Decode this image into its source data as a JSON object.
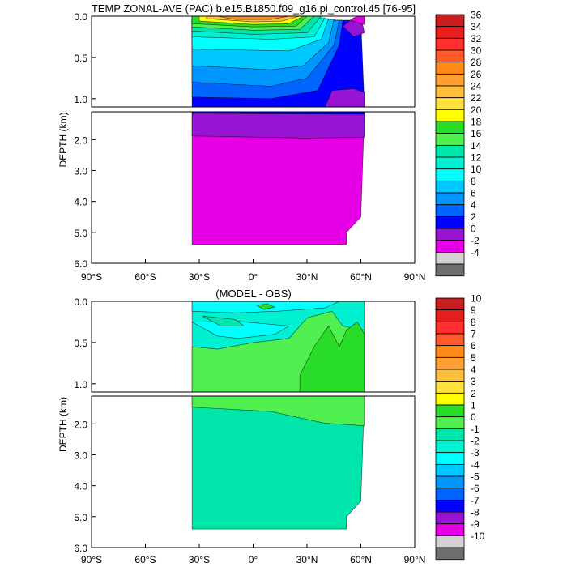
{
  "chart_data": [
    {
      "type": "heatmap",
      "title": "TEMP ZONAL-AVE (PAC) b.e15.B1850.f09_g16.pi_control.45 [76-95]",
      "ylabel": "DEPTH (km)",
      "x_ticks": [
        "90°S",
        "60°S",
        "30°S",
        "0°",
        "30°N",
        "60°N",
        "90°N"
      ],
      "upper_y_ticks": [
        "0.0",
        "0.5",
        "1.0"
      ],
      "lower_y_ticks": [
        "2.0",
        "3.0",
        "4.0",
        "5.0",
        "6.0"
      ],
      "xlim": [
        -90,
        90
      ],
      "upper_ylim_km": [
        0,
        1.1
      ],
      "lower_ylim_km": [
        1.1,
        6.0
      ],
      "colorbar": {
        "labels": [
          "36",
          "34",
          "32",
          "30",
          "28",
          "26",
          "24",
          "22",
          "20",
          "18",
          "16",
          "14",
          "12",
          "10",
          "8",
          "6",
          "4",
          "2",
          "0",
          "-2",
          "-4"
        ],
        "colors": [
          "#c81e1e",
          "#e61e1e",
          "#ff3030",
          "#ff5a2c",
          "#ff8a16",
          "#ffa034",
          "#ffbe3c",
          "#ffe13c",
          "#ffff00",
          "#28dc28",
          "#50f050",
          "#00e6aa",
          "#00f0d2",
          "#00ffff",
          "#00c8ff",
          "#0096ff",
          "#0064ff",
          "#0000ff",
          "#9614d2",
          "#e600e6",
          "#d2d2d2",
          "#6e6e6e"
        ]
      },
      "series": [
        {
          "region": "upper",
          "fields": [
            {
              "color": "#0000ff",
              "points": [
                [
                  -34,
                  0.05
                ],
                [
                  60,
                  0.05
                ],
                [
                  62,
                  1.1
                ],
                [
                  -34,
                  1.1
                ]
              ]
            },
            {
              "color": "#0064ff",
              "points": [
                [
                  -34,
                  0.05
                ],
                [
                  50,
                  0.05
                ],
                [
                  48,
                  0.35
                ],
                [
                  36,
                  0.9
                ],
                [
                  10,
                  1.0
                ],
                [
                  -34,
                  0.98
                ]
              ]
            },
            {
              "color": "#0096ff",
              "points": [
                [
                  -34,
                  0.05
                ],
                [
                  48,
                  0.05
                ],
                [
                  45,
                  0.35
                ],
                [
                  30,
                  0.75
                ],
                [
                  10,
                  0.85
                ],
                [
                  -34,
                  0.8
                ]
              ]
            },
            {
              "color": "#00c8ff",
              "points": [
                [
                  -34,
                  0.04
                ],
                [
                  45,
                  0.04
                ],
                [
                  42,
                  0.32
                ],
                [
                  28,
                  0.6
                ],
                [
                  10,
                  0.65
                ],
                [
                  -34,
                  0.6
                ]
              ]
            },
            {
              "color": "#00ffff",
              "points": [
                [
                  -34,
                  0.03
                ],
                [
                  42,
                  0.03
                ],
                [
                  38,
                  0.28
                ],
                [
                  20,
                  0.42
                ],
                [
                  -34,
                  0.4
                ]
              ]
            },
            {
              "color": "#00f0d2",
              "points": [
                [
                  -34,
                  0.02
                ],
                [
                  40,
                  0.02
                ],
                [
                  34,
                  0.25
                ],
                [
                  10,
                  0.28
                ],
                [
                  -34,
                  0.25
                ]
              ]
            },
            {
              "color": "#00e6aa",
              "points": [
                [
                  -34,
                  0.0
                ],
                [
                  38,
                  0.0
                ],
                [
                  30,
                  0.2
                ],
                [
                  0,
                  0.22
                ],
                [
                  -34,
                  0.18
                ]
              ]
            },
            {
              "color": "#50f050",
              "points": [
                [
                  -34,
                  0.0
                ],
                [
                  34,
                  0.0
                ],
                [
                  26,
                  0.16
                ],
                [
                  0,
                  0.17
                ],
                [
                  -34,
                  0.13
                ]
              ]
            },
            {
              "color": "#28dc28",
              "points": [
                [
                  -34,
                  0.0
                ],
                [
                  30,
                  0.0
                ],
                [
                  24,
                  0.12
                ],
                [
                  0,
                  0.13
                ],
                [
                  -34,
                  0.09
                ]
              ]
            },
            {
              "color": "#ffff00",
              "points": [
                [
                  -30,
                  0.0
                ],
                [
                  28,
                  0.0
                ],
                [
                  20,
                  0.09
                ],
                [
                  0,
                  0.1
                ],
                [
                  -30,
                  0.06
                ]
              ]
            },
            {
              "color": "#ffbe3c",
              "points": [
                [
                  -26,
                  0.0
                ],
                [
                  26,
                  0.0
                ],
                [
                  16,
                  0.06
                ],
                [
                  0,
                  0.07
                ],
                [
                  -26,
                  0.03
                ]
              ]
            },
            {
              "color": "#ff8a16",
              "points": [
                [
                  -20,
                  0.0
                ],
                [
                  20,
                  0.0
                ],
                [
                  10,
                  0.04
                ],
                [
                  -10,
                  0.04
                ]
              ]
            },
            {
              "color": "#9614d2",
              "points": [
                [
                  40,
                  1.1
                ],
                [
                  44,
                  0.9
                ],
                [
                  56,
                  0.88
                ],
                [
                  62,
                  0.92
                ],
                [
                  62,
                  1.1
                ]
              ]
            },
            {
              "color": "#9614d2",
              "points": [
                [
                  50,
                  0.12
                ],
                [
                  56,
                  0.02
                ],
                [
                  60,
                  0.0
                ],
                [
                  62,
                  0.2
                ],
                [
                  56,
                  0.25
                ]
              ]
            },
            {
              "color": "#e600e6",
              "points": [
                [
                  54,
                  0.05
                ],
                [
                  58,
                  0.0
                ],
                [
                  62,
                  0.0
                ],
                [
                  62,
                  0.1
                ]
              ]
            }
          ]
        },
        {
          "region": "lower",
          "fields": [
            {
              "color": "#e600e6",
              "points": [
                [
                  -34,
                  1.1
                ],
                [
                  62,
                  1.1
                ],
                [
                  60,
                  4.5
                ],
                [
                  52,
                  5.0
                ],
                [
                  52,
                  5.4
                ],
                [
                  -34,
                  5.4
                ]
              ]
            },
            {
              "color": "#9614d2",
              "points": [
                [
                  -34,
                  1.1
                ],
                [
                  62,
                  1.1
                ],
                [
                  62,
                  1.92
                ],
                [
                  30,
                  1.95
                ],
                [
                  -34,
                  1.88
                ]
              ]
            },
            {
              "color": "#0000ff",
              "points": [
                [
                  -34,
                  1.1
                ],
                [
                  62,
                  1.1
                ],
                [
                  62,
                  1.18
                ],
                [
                  -34,
                  1.15
                ]
              ]
            }
          ]
        }
      ]
    },
    {
      "type": "heatmap",
      "title": "(MODEL - OBS)",
      "ylabel": "DEPTH (km)",
      "x_ticks": [
        "90°S",
        "60°S",
        "30°S",
        "0°",
        "30°N",
        "60°N",
        "90°N"
      ],
      "upper_y_ticks": [
        "0.0",
        "0.5",
        "1.0"
      ],
      "lower_y_ticks": [
        "2.0",
        "3.0",
        "4.0",
        "5.0",
        "6.0"
      ],
      "xlim": [
        -90,
        90
      ],
      "upper_ylim_km": [
        0,
        1.1
      ],
      "lower_ylim_km": [
        1.1,
        6.0
      ],
      "colorbar": {
        "labels": [
          "10",
          "9",
          "8",
          "7",
          "6",
          "5",
          "4",
          "3",
          "2",
          "1",
          "0",
          "-1",
          "-2",
          "-3",
          "-4",
          "-5",
          "-6",
          "-7",
          "-8",
          "-9",
          "-10"
        ],
        "colors": [
          "#c81e1e",
          "#e61e1e",
          "#ff3030",
          "#ff5a2c",
          "#ff8a16",
          "#ffa034",
          "#ffbe3c",
          "#ffe13c",
          "#ffff00",
          "#28dc28",
          "#50f050",
          "#00e6aa",
          "#00f0d2",
          "#00ffff",
          "#00c8ff",
          "#0096ff",
          "#0064ff",
          "#0000ff",
          "#9614d2",
          "#e600e6",
          "#d2d2d2",
          "#6e6e6e"
        ]
      },
      "series": [
        {
          "region": "upper",
          "fields": [
            {
              "color": "#00f0d2",
              "points": [
                [
                  -34,
                  0.0
                ],
                [
                  62,
                  0.0
                ],
                [
                  62,
                  1.1
                ],
                [
                  -34,
                  1.1
                ]
              ]
            },
            {
              "color": "#00ffff",
              "points": [
                [
                  -34,
                  0.0
                ],
                [
                  48,
                  0.0
                ],
                [
                  40,
                  0.08
                ],
                [
                  14,
                  0.12
                ],
                [
                  -10,
                  0.14
                ],
                [
                  -34,
                  0.12
                ]
              ]
            },
            {
              "color": "#00ffff",
              "points": [
                [
                  -34,
                  0.25
                ],
                [
                  -20,
                  0.42
                ],
                [
                  -8,
                  0.45
                ],
                [
                  12,
                  0.4
                ],
                [
                  20,
                  0.3
                ],
                [
                  -10,
                  0.24
                ]
              ]
            },
            {
              "color": "#00e6aa",
              "points": [
                [
                  -28,
                  0.18
                ],
                [
                  -18,
                  0.3
                ],
                [
                  -5,
                  0.3
                ],
                [
                  -10,
                  0.22
                ]
              ]
            },
            {
              "color": "#50f050",
              "points": [
                [
                  -34,
                  0.55
                ],
                [
                  -20,
                  0.58
                ],
                [
                  0,
                  0.5
                ],
                [
                  20,
                  0.45
                ],
                [
                  30,
                  0.2
                ],
                [
                  44,
                  0.12
                ],
                [
                  50,
                  0.3
                ],
                [
                  62,
                  0.35
                ],
                [
                  62,
                  1.1
                ],
                [
                  -34,
                  1.1
                ]
              ]
            },
            {
              "color": "#28dc28",
              "points": [
                [
                  26,
                  0.9
                ],
                [
                  34,
                  0.55
                ],
                [
                  42,
                  0.3
                ],
                [
                  48,
                  0.55
                ],
                [
                  52,
                  0.35
                ],
                [
                  58,
                  0.25
                ],
                [
                  62,
                  0.4
                ],
                [
                  62,
                  1.1
                ],
                [
                  26,
                  1.1
                ]
              ]
            },
            {
              "color": "#28dc28",
              "points": [
                [
                  2,
                  0.05
                ],
                [
                  8,
                  0.03
                ],
                [
                  12,
                  0.07
                ],
                [
                  6,
                  0.1
                ]
              ]
            }
          ]
        },
        {
          "region": "lower",
          "fields": [
            {
              "color": "#00e6aa",
              "points": [
                [
                  -34,
                  1.1
                ],
                [
                  62,
                  1.1
                ],
                [
                  60,
                  4.5
                ],
                [
                  52,
                  5.0
                ],
                [
                  52,
                  5.4
                ],
                [
                  -34,
                  5.4
                ]
              ]
            },
            {
              "color": "#50f050",
              "points": [
                [
                  -34,
                  1.1
                ],
                [
                  62,
                  1.1
                ],
                [
                  62,
                  2.06
                ],
                [
                  40,
                  1.98
                ],
                [
                  10,
                  1.6
                ],
                [
                  -34,
                  1.46
                ]
              ]
            }
          ]
        }
      ]
    }
  ]
}
